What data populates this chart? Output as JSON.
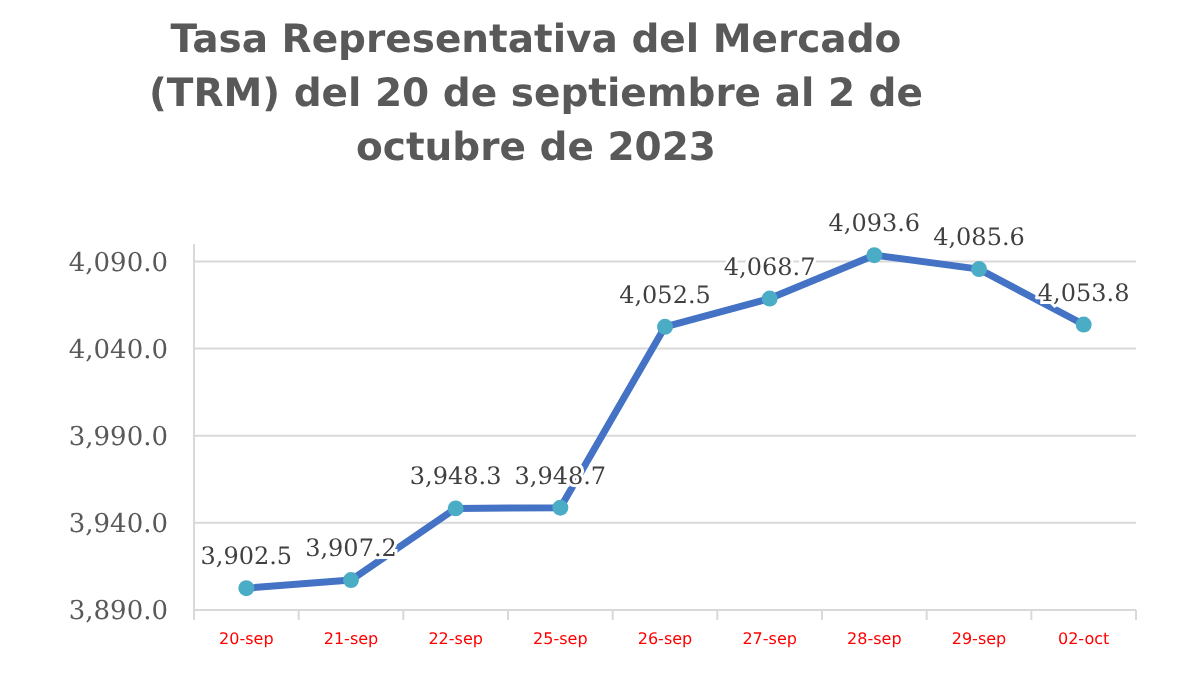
{
  "chart_data": {
    "type": "line",
    "title": "Tasa Representativa del Mercado\n(TRM)  del 20 de septiembre al 2 de\noctubre de 2023",
    "categories": [
      "20-sep",
      "21-sep",
      "22-sep",
      "25-sep",
      "26-sep",
      "27-sep",
      "28-sep",
      "29-sep",
      "02-oct"
    ],
    "series": [
      {
        "color": "#4472c4",
        "values": [
          3902.5,
          3907.2,
          3948.3,
          3948.7,
          4052.5,
          4068.7,
          4093.6,
          4085.6,
          4053.8
        ],
        "value_labels": [
          "3,902.5",
          "3,907.2",
          "3,948.3",
          "3,948.7",
          "4,052.5",
          "4,068.7",
          "4,093.6",
          "4,085.6",
          "4,053.8"
        ]
      }
    ],
    "ylim": [
      3890,
      4100
    ],
    "yticks": [
      {
        "value": 3890,
        "label": "3,890.0"
      },
      {
        "value": 3940,
        "label": "3,940.0"
      },
      {
        "value": 3990,
        "label": "3,990.0"
      },
      {
        "value": 4040,
        "label": "4,040.0"
      },
      {
        "value": 4090,
        "label": "4,090.0"
      }
    ],
    "grid": "y",
    "marker": "circle",
    "line_style": "solid"
  }
}
